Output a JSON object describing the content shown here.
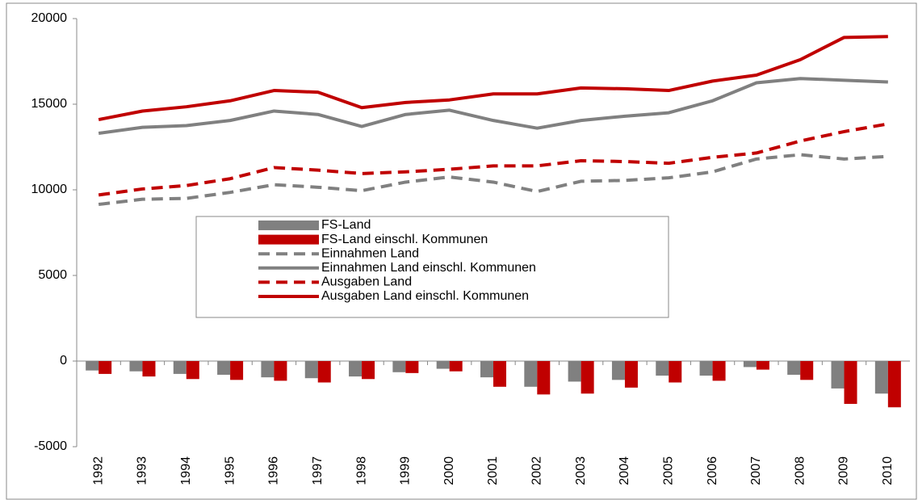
{
  "chart_data": {
    "type": "combo",
    "categories": [
      "1992",
      "1993",
      "1994",
      "1995",
      "1996",
      "1997",
      "1998",
      "1999",
      "2000",
      "2001",
      "2002",
      "2003",
      "2004",
      "2005",
      "2006",
      "2007",
      "2008",
      "2009",
      "2010"
    ],
    "ylim": [
      -5000,
      20000
    ],
    "yticks": [
      -5000,
      0,
      5000,
      10000,
      15000,
      20000
    ],
    "series": [
      {
        "name": "FS-Land",
        "type": "bar",
        "color": "#808080",
        "values": [
          -550,
          -600,
          -750,
          -800,
          -950,
          -1000,
          -900,
          -650,
          -450,
          -950,
          -1500,
          -1200,
          -1100,
          -850,
          -850,
          -350,
          -800,
          -1600,
          -1900
        ]
      },
      {
        "name": "FS-Land einschl. Kommunen",
        "type": "bar",
        "color": "#c00000",
        "values": [
          -750,
          -900,
          -1050,
          -1100,
          -1150,
          -1250,
          -1050,
          -700,
          -600,
          -1500,
          -1950,
          -1900,
          -1550,
          -1250,
          -1150,
          -500,
          -1100,
          -2500,
          -2700
        ]
      },
      {
        "name": "Einnahmen Land",
        "type": "line",
        "dashed": true,
        "color": "#808080",
        "values": [
          9150,
          9450,
          9500,
          9850,
          10300,
          10150,
          9950,
          10450,
          10750,
          10450,
          9900,
          10500,
          10550,
          10700,
          11050,
          11800,
          12050,
          11800,
          11950
        ]
      },
      {
        "name": "Einnahmen Land einschl. Kommunen",
        "type": "line",
        "dashed": false,
        "color": "#808080",
        "values": [
          13300,
          13650,
          13750,
          14050,
          14600,
          14400,
          13700,
          14400,
          14650,
          14050,
          13600,
          14050,
          14300,
          14500,
          15200,
          16250,
          16500,
          16400,
          16300
        ]
      },
      {
        "name": "Ausgaben Land",
        "type": "line",
        "dashed": true,
        "color": "#c00000",
        "values": [
          9700,
          10050,
          10250,
          10650,
          11300,
          11150,
          10950,
          11050,
          11200,
          11400,
          11400,
          11700,
          11650,
          11550,
          11900,
          12150,
          12850,
          13400,
          13850
        ]
      },
      {
        "name": "Ausgaben Land einschl. Kommunen",
        "type": "line",
        "dashed": false,
        "color": "#c00000",
        "values": [
          14100,
          14600,
          14850,
          15200,
          15800,
          15700,
          14800,
          15100,
          15250,
          15600,
          15600,
          15950,
          15900,
          15800,
          16350,
          16700,
          17600,
          18900,
          18950
        ]
      }
    ]
  }
}
